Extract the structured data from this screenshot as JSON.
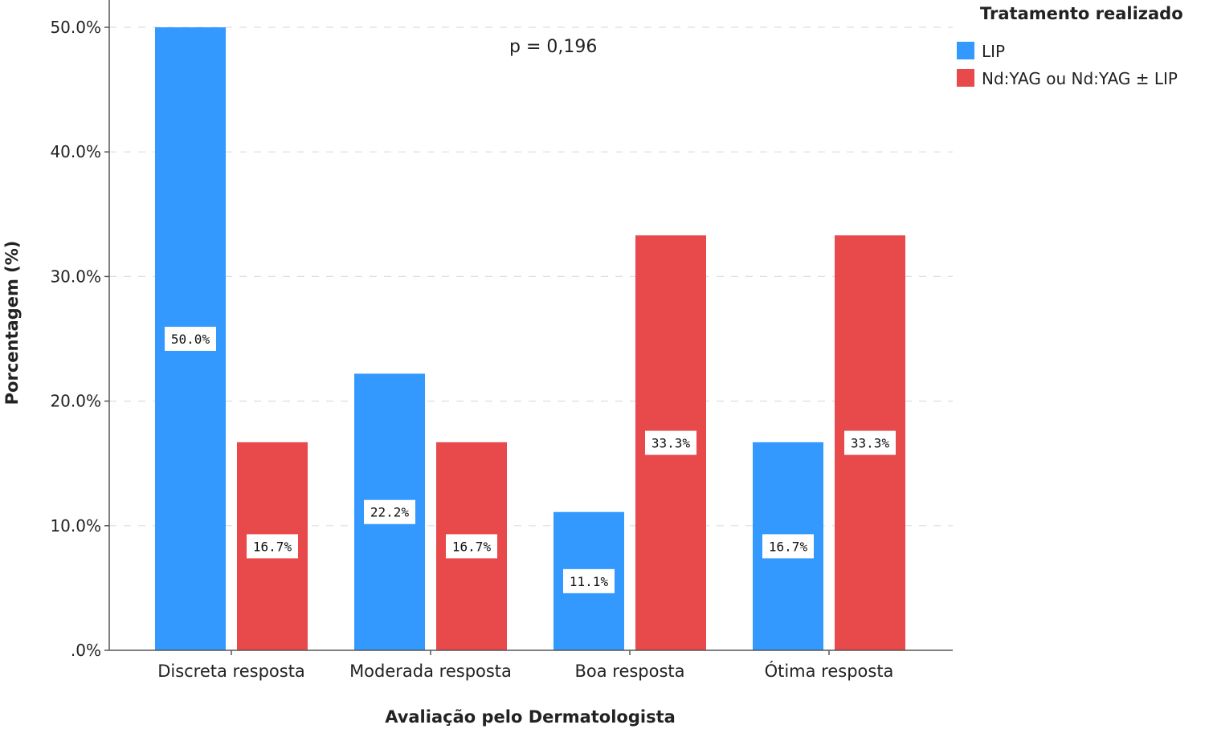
{
  "chart_data": {
    "type": "bar",
    "categories": [
      "Discreta resposta",
      "Moderada resposta",
      "Boa resposta",
      "Ótima resposta"
    ],
    "series": [
      {
        "name": "LIP",
        "values": [
          50.0,
          22.2,
          11.1,
          16.7
        ],
        "color": "#3399ff"
      },
      {
        "name": "Nd:YAG ou Nd:YAG ± LIP",
        "values": [
          16.7,
          16.7,
          33.3,
          33.3
        ],
        "color": "#e8494b"
      }
    ],
    "data_labels": [
      [
        "50.0%",
        "22.2%",
        "11.1%",
        "16.7%"
      ],
      [
        "16.7%",
        "16.7%",
        "33.3%",
        "33.3%"
      ]
    ],
    "xlabel": "Avaliação pelo Dermatologista",
    "ylabel": "Porcentagem (%)",
    "ylim": [
      0,
      50
    ],
    "yticks": [
      0,
      10,
      20,
      30,
      40,
      50
    ],
    "ytick_labels": [
      ".0%",
      "10.0%",
      "20.0%",
      "30.0%",
      "40.0%",
      "50.0%"
    ],
    "annotation": "p = 0,196",
    "legend_title": "Tratamento realizado",
    "legend_position": "top-right",
    "grid": "horizontal dashed"
  }
}
